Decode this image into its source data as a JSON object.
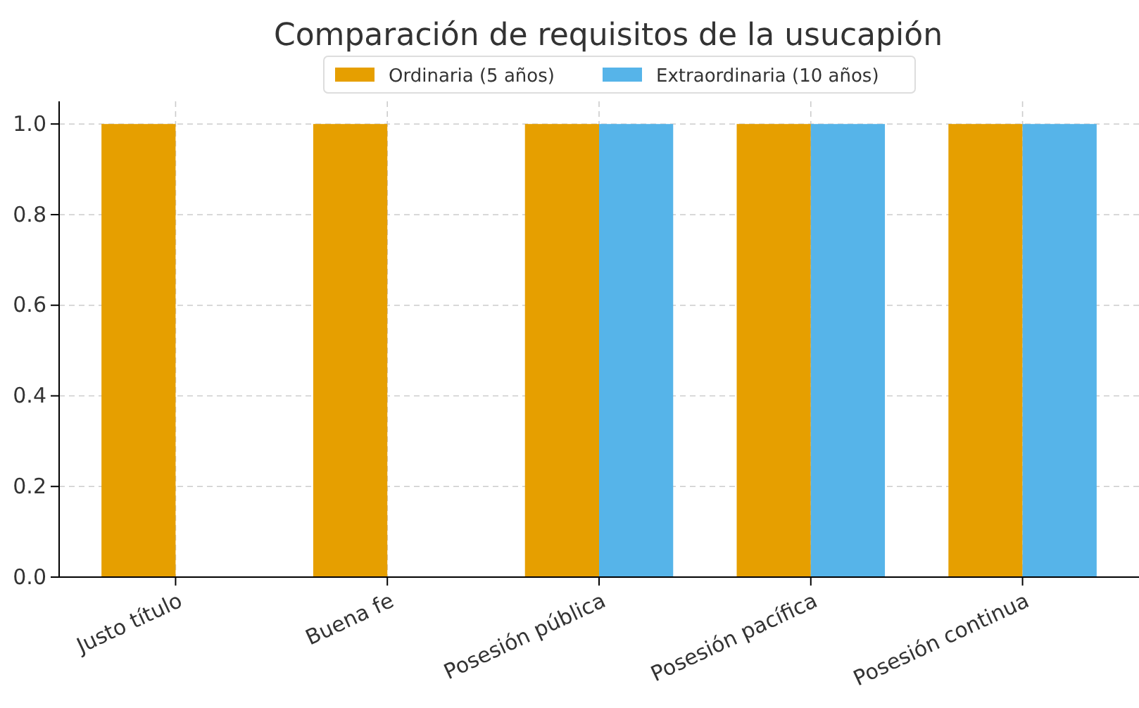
{
  "chart_data": {
    "type": "bar",
    "title": "Comparación de requisitos de la usucapión",
    "categories": [
      "Justo título",
      "Buena fe",
      "Posesión pública",
      "Posesión pacífica",
      "Posesión continua"
    ],
    "series": [
      {
        "name": "Ordinaria (5 años)",
        "color": "#e69f00",
        "values": [
          1,
          1,
          1,
          1,
          1
        ]
      },
      {
        "name": "Extraordinaria (10 años)",
        "color": "#56b4e9",
        "values": [
          0,
          0,
          1,
          1,
          1
        ]
      }
    ],
    "ylim": [
      0,
      1.05
    ],
    "yticks": [
      {
        "value": 0,
        "label": "0.0"
      },
      {
        "value": 0.2,
        "label": "0.2"
      },
      {
        "value": 0.4,
        "label": "0.4"
      },
      {
        "value": 0.6,
        "label": "0.6"
      },
      {
        "value": 0.8,
        "label": "0.8"
      },
      {
        "value": 1,
        "label": "1.0"
      }
    ],
    "grid": true,
    "legend": "top"
  }
}
